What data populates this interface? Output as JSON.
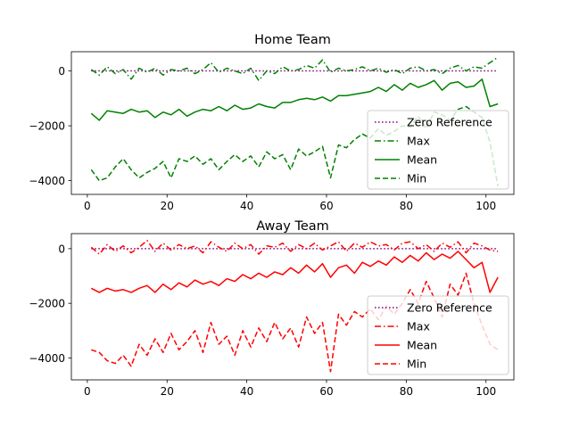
{
  "chart_data": [
    {
      "type": "line",
      "title": "Home Team",
      "xlabel": "",
      "ylabel": "",
      "xlim": [
        -4,
        107
      ],
      "ylim": [
        -4500,
        700
      ],
      "xticks": [
        0,
        20,
        40,
        60,
        80,
        100
      ],
      "xtick_labels": [
        "0",
        "20",
        "40",
        "60",
        "80",
        "100"
      ],
      "yticks": [
        0,
        -2000,
        -4000
      ],
      "ytick_labels": [
        "0",
        "−2000",
        "−4000"
      ],
      "legend_position": "lower-right",
      "grid": false,
      "color": "#008000",
      "series": [
        {
          "name": "Zero Reference",
          "style": "dotted",
          "color": "#800080",
          "x": [
            1,
            103
          ],
          "y": [
            0,
            0
          ]
        },
        {
          "name": "Max",
          "style": "dashdot",
          "color": "#008000",
          "x": [
            1,
            3,
            5,
            7,
            9,
            11,
            13,
            15,
            17,
            19,
            21,
            23,
            25,
            27,
            29,
            31,
            33,
            35,
            37,
            39,
            41,
            43,
            45,
            47,
            49,
            51,
            53,
            55,
            57,
            59,
            61,
            63,
            65,
            67,
            69,
            71,
            73,
            75,
            77,
            79,
            81,
            83,
            85,
            87,
            89,
            91,
            93,
            95,
            97,
            99,
            101,
            103
          ],
          "y": [
            50,
            -150,
            150,
            -100,
            50,
            -300,
            100,
            -50,
            100,
            -150,
            50,
            0,
            100,
            -100,
            50,
            300,
            -50,
            100,
            0,
            -100,
            100,
            -350,
            0,
            -100,
            150,
            0,
            50,
            200,
            100,
            400,
            -50,
            100,
            0,
            50,
            150,
            0,
            100,
            -50,
            50,
            -100,
            100,
            150,
            0,
            50,
            -100,
            100,
            200,
            0,
            150,
            100,
            300,
            500
          ]
        },
        {
          "name": "Mean",
          "style": "solid",
          "color": "#008000",
          "x": [
            1,
            3,
            5,
            7,
            9,
            11,
            13,
            15,
            17,
            19,
            21,
            23,
            25,
            27,
            29,
            31,
            33,
            35,
            37,
            39,
            41,
            43,
            45,
            47,
            49,
            51,
            53,
            55,
            57,
            59,
            61,
            63,
            65,
            67,
            69,
            71,
            73,
            75,
            77,
            79,
            81,
            83,
            85,
            87,
            89,
            91,
            93,
            95,
            97,
            99,
            101,
            103
          ],
          "y": [
            -1550,
            -1800,
            -1450,
            -1500,
            -1550,
            -1400,
            -1500,
            -1450,
            -1700,
            -1500,
            -1600,
            -1400,
            -1650,
            -1500,
            -1400,
            -1450,
            -1300,
            -1450,
            -1250,
            -1400,
            -1350,
            -1200,
            -1300,
            -1350,
            -1150,
            -1150,
            -1050,
            -1000,
            -1050,
            -950,
            -1100,
            -900,
            -900,
            -850,
            -800,
            -750,
            -600,
            -750,
            -500,
            -700,
            -450,
            -600,
            -500,
            -350,
            -700,
            -450,
            -400,
            -600,
            -550,
            -300,
            -1300,
            -1200
          ]
        },
        {
          "name": "Min",
          "style": "dashed",
          "color": "#008000",
          "x": [
            1,
            3,
            5,
            7,
            9,
            11,
            13,
            15,
            17,
            19,
            21,
            23,
            25,
            27,
            29,
            31,
            33,
            35,
            37,
            39,
            41,
            43,
            45,
            47,
            49,
            51,
            53,
            55,
            57,
            59,
            61,
            63,
            65,
            67,
            69,
            71,
            73,
            75,
            77,
            79,
            81,
            83,
            85,
            87,
            89,
            91,
            93,
            95,
            97,
            99,
            101,
            103
          ],
          "y": [
            -3600,
            -4000,
            -3900,
            -3500,
            -3200,
            -3600,
            -3900,
            -3700,
            -3550,
            -3300,
            -3900,
            -3200,
            -3300,
            -3100,
            -3400,
            -3200,
            -3600,
            -3300,
            -3050,
            -3300,
            -3100,
            -3500,
            -2950,
            -3200,
            -3050,
            -3600,
            -2850,
            -3100,
            -2950,
            -2750,
            -3900,
            -2700,
            -2800,
            -2500,
            -2300,
            -2450,
            -2100,
            -2350,
            -2200,
            -2000,
            -2050,
            -1650,
            -2100,
            -1500,
            -1600,
            -1800,
            -1400,
            -1300,
            -1500,
            -1700,
            -2600,
            -4200
          ]
        }
      ]
    },
    {
      "type": "line",
      "title": "Away Team",
      "xlabel": "",
      "ylabel": "",
      "xlim": [
        -4,
        107
      ],
      "ylim": [
        -4800,
        550
      ],
      "xticks": [
        0,
        20,
        40,
        60,
        80,
        100
      ],
      "xtick_labels": [
        "0",
        "20",
        "40",
        "60",
        "80",
        "100"
      ],
      "yticks": [
        0,
        -2000,
        -4000
      ],
      "ytick_labels": [
        "0",
        "−2000",
        "−4000"
      ],
      "legend_position": "lower-right",
      "grid": false,
      "color": "#ff0000",
      "series": [
        {
          "name": "Zero Reference",
          "style": "dotted",
          "color": "#800080",
          "x": [
            1,
            103
          ],
          "y": [
            0,
            0
          ]
        },
        {
          "name": "Max",
          "style": "dashdot",
          "color": "#ff0000",
          "x": [
            1,
            3,
            5,
            7,
            9,
            11,
            13,
            15,
            17,
            19,
            21,
            23,
            25,
            27,
            29,
            31,
            33,
            35,
            37,
            39,
            41,
            43,
            45,
            47,
            49,
            51,
            53,
            55,
            57,
            59,
            61,
            63,
            65,
            67,
            69,
            71,
            73,
            75,
            77,
            79,
            81,
            83,
            85,
            87,
            89,
            91,
            93,
            95,
            97,
            99,
            101,
            103
          ],
          "y": [
            50,
            -200,
            150,
            -100,
            100,
            -150,
            50,
            300,
            -100,
            200,
            -50,
            150,
            0,
            100,
            -150,
            250,
            50,
            -100,
            200,
            0,
            150,
            -200,
            100,
            50,
            200,
            -100,
            150,
            0,
            200,
            -50,
            100,
            250,
            -100,
            200,
            50,
            250,
            100,
            150,
            -50,
            200,
            250,
            0,
            150,
            -100,
            200,
            50,
            250,
            -150,
            200,
            100,
            -50,
            -100
          ]
        },
        {
          "name": "Mean",
          "style": "solid",
          "color": "#ff0000",
          "x": [
            1,
            3,
            5,
            7,
            9,
            11,
            13,
            15,
            17,
            19,
            21,
            23,
            25,
            27,
            29,
            31,
            33,
            35,
            37,
            39,
            41,
            43,
            45,
            47,
            49,
            51,
            53,
            55,
            57,
            59,
            61,
            63,
            65,
            67,
            69,
            71,
            73,
            75,
            77,
            79,
            81,
            83,
            85,
            87,
            89,
            91,
            93,
            95,
            97,
            99,
            101,
            103
          ],
          "y": [
            -1450,
            -1600,
            -1450,
            -1550,
            -1500,
            -1600,
            -1450,
            -1350,
            -1600,
            -1300,
            -1500,
            -1250,
            -1400,
            -1150,
            -1300,
            -1200,
            -1350,
            -1100,
            -1200,
            -950,
            -1100,
            -900,
            -1050,
            -850,
            -950,
            -700,
            -900,
            -600,
            -850,
            -550,
            -1050,
            -700,
            -600,
            -900,
            -500,
            -650,
            -450,
            -600,
            -300,
            -500,
            -250,
            -450,
            -150,
            -400,
            -200,
            -350,
            -100,
            -400,
            -700,
            -500,
            -1600,
            -1050
          ]
        },
        {
          "name": "Min",
          "style": "dashed",
          "color": "#ff0000",
          "x": [
            1,
            3,
            5,
            7,
            9,
            11,
            13,
            15,
            17,
            19,
            21,
            23,
            25,
            27,
            29,
            31,
            33,
            35,
            37,
            39,
            41,
            43,
            45,
            47,
            49,
            51,
            53,
            55,
            57,
            59,
            61,
            63,
            65,
            67,
            69,
            71,
            73,
            75,
            77,
            79,
            81,
            83,
            85,
            87,
            89,
            91,
            93,
            95,
            97,
            99,
            101,
            103
          ],
          "y": [
            -3700,
            -3800,
            -4100,
            -4200,
            -3900,
            -4300,
            -3500,
            -3900,
            -3300,
            -3800,
            -3100,
            -3700,
            -3400,
            -3000,
            -3800,
            -2700,
            -3500,
            -3200,
            -3900,
            -3000,
            -3600,
            -2900,
            -3400,
            -2700,
            -3300,
            -2900,
            -3600,
            -2500,
            -3100,
            -2700,
            -4500,
            -2400,
            -2800,
            -2300,
            -2500,
            -2200,
            -2600,
            -2100,
            -2400,
            -2000,
            -1500,
            -2000,
            -1200,
            -1800,
            -2500,
            -1300,
            -1700,
            -900,
            -2000,
            -2800,
            -3500,
            -3700
          ]
        }
      ]
    }
  ]
}
